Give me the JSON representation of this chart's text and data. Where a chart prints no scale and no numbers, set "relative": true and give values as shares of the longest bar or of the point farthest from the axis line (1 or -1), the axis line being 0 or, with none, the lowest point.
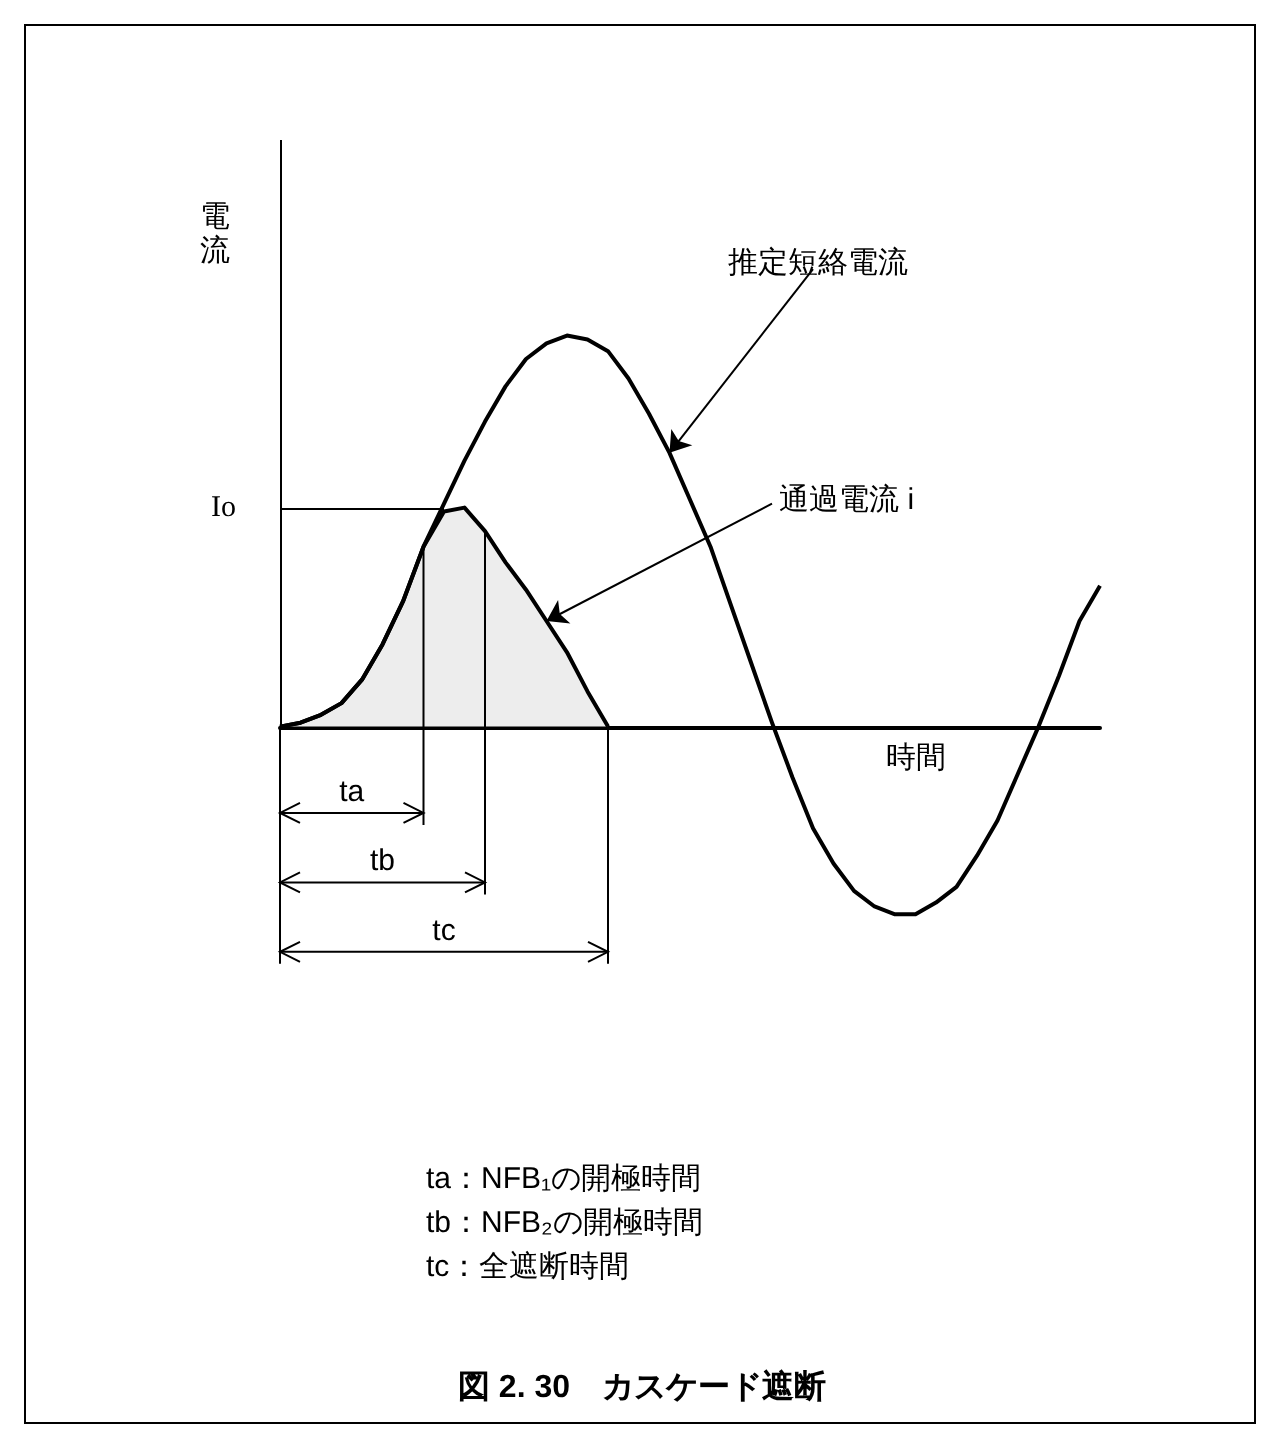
{
  "chart_data": {
    "type": "line",
    "title": "図 2. 30　カスケード遮断",
    "xlabel": "時間",
    "ylabel": "電流",
    "relative": true,
    "marker": "none",
    "legend": false,
    "grid": false,
    "categories": [
      null,
      null,
      null,
      null,
      null,
      null,
      null,
      null,
      null,
      null,
      null,
      null,
      null,
      null,
      null,
      null,
      null,
      null,
      null,
      null,
      null,
      null,
      null,
      null,
      null,
      null,
      null,
      null,
      null,
      null,
      null,
      null,
      null,
      null,
      null,
      null,
      null,
      null,
      null,
      null,
      null
    ],
    "series": [
      {
        "name": "推定短絡電流",
        "color": "#000000",
        "values": [
          0,
          0.01,
          0.03,
          0.06,
          0.12,
          0.21,
          0.32,
          0.46,
          0.57,
          0.68,
          0.78,
          0.87,
          0.94,
          0.98,
          1,
          0.99,
          0.96,
          0.89,
          0.8,
          0.7,
          0.58,
          0.46,
          0.31,
          0.16,
          0.01,
          -0.13,
          -0.26,
          -0.35,
          -0.42,
          -0.46,
          -0.48,
          -0.48,
          -0.45,
          -0.41,
          -0.33,
          -0.24,
          -0.12,
          0,
          0.13,
          0.27,
          0.36
        ]
      },
      {
        "name": "通過電流 i",
        "type": "area",
        "color": "#000000",
        "values": [
          0,
          0.01,
          0.03,
          0.06,
          0.12,
          0.21,
          0.32,
          0.46,
          0.55,
          0.56,
          0.5,
          0.42,
          0.35,
          0.27,
          0.19,
          0.09,
          0,
          null,
          null,
          null,
          null,
          null,
          null,
          null,
          null,
          null,
          null,
          null,
          null,
          null,
          null,
          null,
          null,
          null,
          null,
          null,
          null,
          null,
          null,
          null,
          null
        ]
      }
    ],
    "ref_lines": [
      {
        "axis": "y",
        "value": 0.56,
        "label": "Io"
      }
    ],
    "annotations": [
      "ta",
      "tb",
      "tc",
      "ta：NFB₁の開極時間",
      "tb：NFB₂の開極時間",
      "tc：全遮断時間"
    ]
  }
}
